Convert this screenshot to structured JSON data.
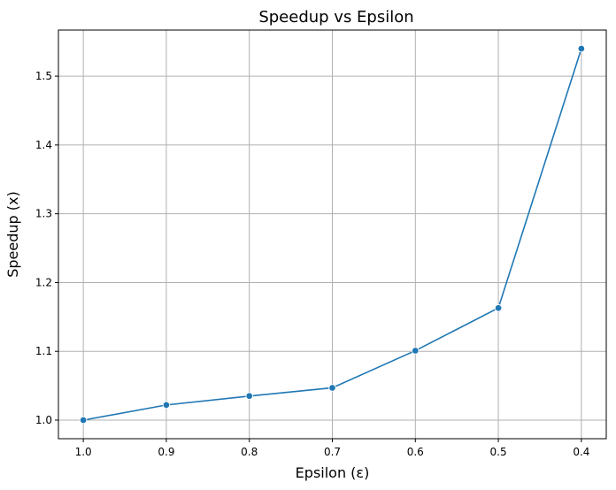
{
  "chart_data": {
    "type": "line",
    "title": "Speedup vs Epsilon",
    "xlabel": "Epsilon (ε)",
    "ylabel": "Speedup (x)",
    "x": [
      1.0,
      0.9,
      0.8,
      0.7,
      0.6,
      0.5,
      0.4
    ],
    "x_tick_labels": [
      "1.0",
      "0.9",
      "0.8",
      "0.7",
      "0.6",
      "0.5",
      "0.4"
    ],
    "x_reversed": true,
    "xlim": [
      1.03,
      0.37
    ],
    "ylim": [
      0.973,
      1.567
    ],
    "y_ticks": [
      1.0,
      1.1,
      1.2,
      1.3,
      1.4,
      1.5
    ],
    "y_tick_labels": [
      "1.0",
      "1.1",
      "1.2",
      "1.3",
      "1.4",
      "1.5"
    ],
    "series": [
      {
        "values": [
          1.0,
          1.022,
          1.035,
          1.047,
          1.101,
          1.163,
          1.54
        ],
        "color": "#1f77b4",
        "marker": "circle"
      }
    ],
    "grid": true,
    "legend": "none"
  }
}
